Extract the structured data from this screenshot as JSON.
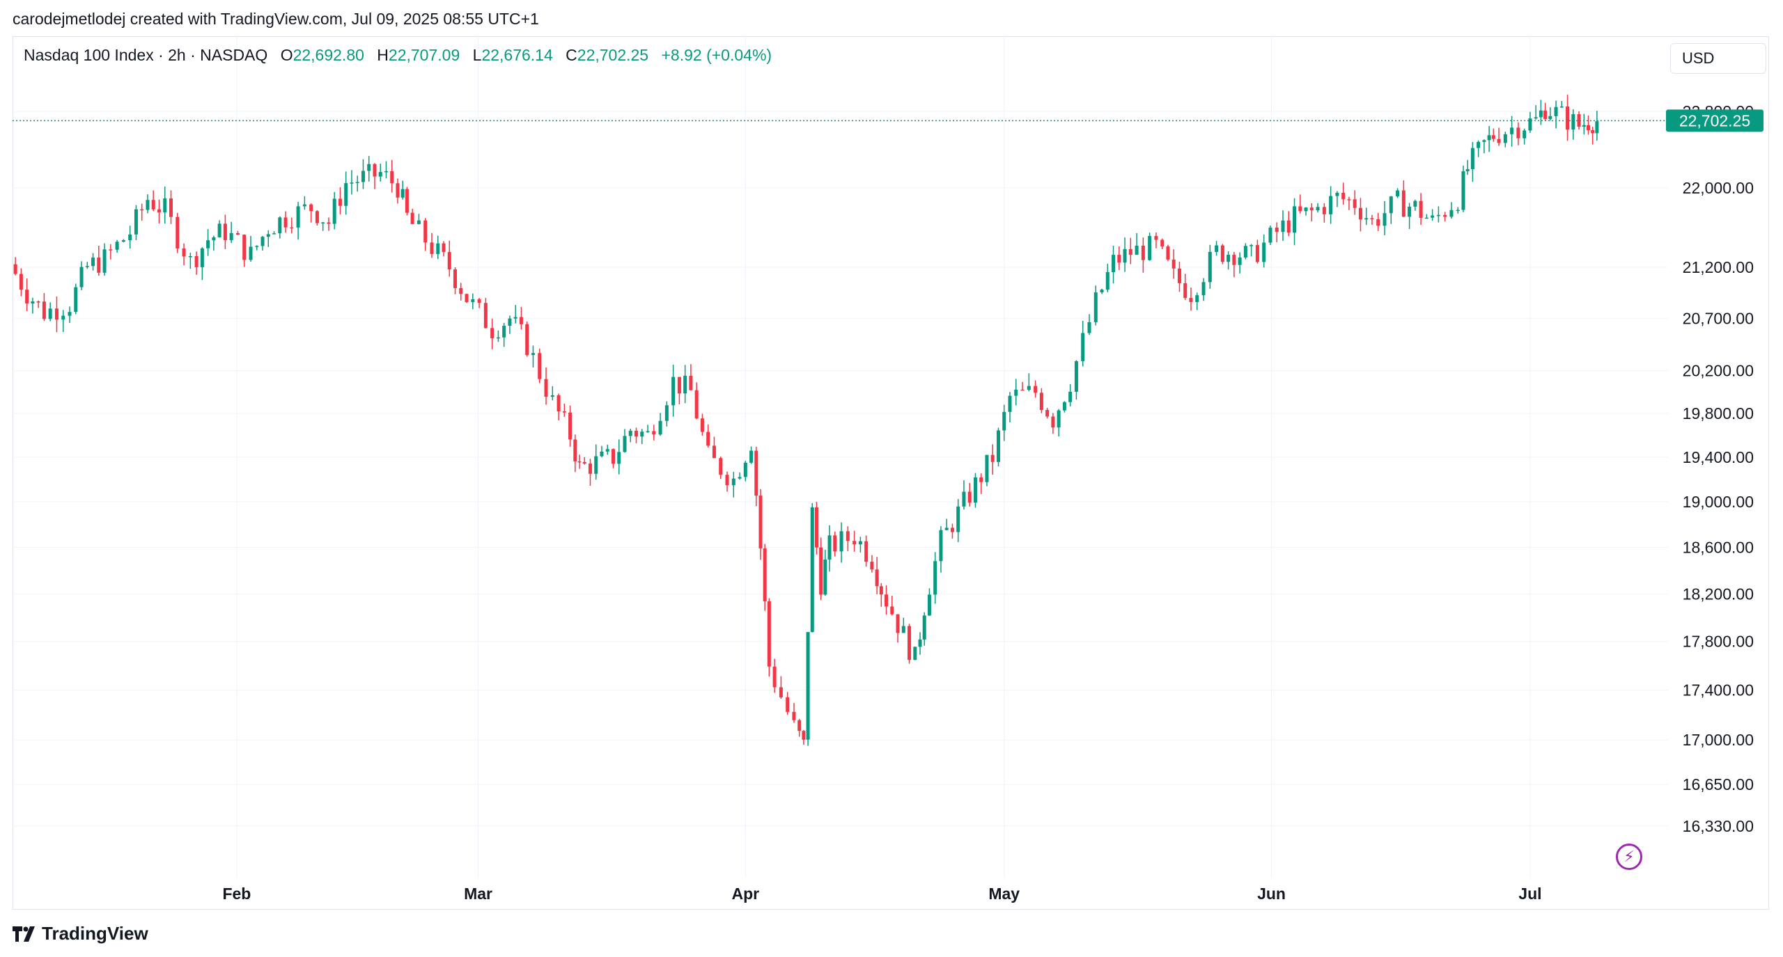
{
  "attribution": "carodejmetlodej created with TradingView.com, Jul 09, 2025 08:55 UTC+1",
  "legend": {
    "symbol": "Nasdaq 100 Index · 2h · NASDAQ",
    "o_label": "O",
    "o_value": "22,692.80",
    "h_label": "H",
    "h_value": "22,707.09",
    "l_label": "L",
    "l_value": "22,676.14",
    "c_label": "C",
    "c_value": "22,702.25",
    "change": "+8.92 (+0.04%)"
  },
  "currency": "USD",
  "brand": "TradingView",
  "colors": {
    "up": "#089981",
    "down": "#f23645",
    "grid": "#f0f3fa",
    "text": "#131722"
  },
  "chart_data": {
    "type": "candlestick",
    "y_axis": {
      "scale": "log",
      "ylim": [
        16050,
        22950
      ],
      "tick_values": [
        16330,
        16650,
        17000,
        17400,
        17800,
        18200,
        18600,
        19000,
        19400,
        19800,
        20200,
        20700,
        21200,
        22000,
        22800
      ],
      "tick_labels": [
        "16,330.00",
        "16,650.00",
        "17,000.00",
        "17,400.00",
        "17,800.00",
        "18,200.00",
        "18,600.00",
        "19,000.00",
        "19,400.00",
        "19,800.00",
        "20,200.00",
        "20,700.00",
        "21,200.00",
        "22,000.00",
        "22,800.00"
      ]
    },
    "x_axis": {
      "range": [
        "2025-01-06",
        "2025-07-17"
      ],
      "ticks": [
        {
          "date": "2025-02-01",
          "label": "Feb"
        },
        {
          "date": "2025-03-01",
          "label": "Mar"
        },
        {
          "date": "2025-04-01",
          "label": "Apr"
        },
        {
          "date": "2025-05-01",
          "label": "May"
        },
        {
          "date": "2025-06-01",
          "label": "Jun"
        },
        {
          "date": "2025-07-01",
          "label": "Jul"
        }
      ]
    },
    "last_price": {
      "value": 22702.25,
      "label": "22,702.25"
    },
    "series": [
      {
        "date": "2025-01-06",
        "close": 21230
      },
      {
        "date": "2025-01-08",
        "close": 20950
      },
      {
        "date": "2025-01-10",
        "close": 20760
      },
      {
        "date": "2025-01-13",
        "close": 20840
      },
      {
        "date": "2025-01-15",
        "close": 21200
      },
      {
        "date": "2025-01-17",
        "close": 21280
      },
      {
        "date": "2025-01-20",
        "close": 21550
      },
      {
        "date": "2025-01-22",
        "close": 21890
      },
      {
        "date": "2025-01-24",
        "close": 21770
      },
      {
        "date": "2025-01-27",
        "close": 21250
      },
      {
        "date": "2025-01-29",
        "close": 21480
      },
      {
        "date": "2025-01-31",
        "close": 21560
      },
      {
        "date": "2025-02-03",
        "close": 21320
      },
      {
        "date": "2025-02-05",
        "close": 21600
      },
      {
        "date": "2025-02-07",
        "close": 21700
      },
      {
        "date": "2025-02-10",
        "close": 21800
      },
      {
        "date": "2025-02-12",
        "close": 21650
      },
      {
        "date": "2025-02-14",
        "close": 22050
      },
      {
        "date": "2025-02-18",
        "close": 22150
      },
      {
        "date": "2025-02-20",
        "close": 22020
      },
      {
        "date": "2025-02-21",
        "close": 21700
      },
      {
        "date": "2025-02-24",
        "close": 21400
      },
      {
        "date": "2025-02-26",
        "close": 21200
      },
      {
        "date": "2025-02-28",
        "close": 20900
      },
      {
        "date": "2025-03-03",
        "close": 20600
      },
      {
        "date": "2025-03-05",
        "close": 20700
      },
      {
        "date": "2025-03-07",
        "close": 20450
      },
      {
        "date": "2025-03-10",
        "close": 19900
      },
      {
        "date": "2025-03-12",
        "close": 19600
      },
      {
        "date": "2025-03-13",
        "close": 19300
      },
      {
        "date": "2025-03-17",
        "close": 19400
      },
      {
        "date": "2025-03-19",
        "close": 19650
      },
      {
        "date": "2025-03-21",
        "close": 19600
      },
      {
        "date": "2025-03-24",
        "close": 20100
      },
      {
        "date": "2025-03-26",
        "close": 20000
      },
      {
        "date": "2025-03-28",
        "close": 19400
      },
      {
        "date": "2025-03-31",
        "close": 19200
      },
      {
        "date": "2025-04-02",
        "close": 19550
      },
      {
        "date": "2025-04-03",
        "close": 18600
      },
      {
        "date": "2025-04-04",
        "close": 17600
      },
      {
        "date": "2025-04-07",
        "close": 17100
      },
      {
        "date": "2025-04-08",
        "close": 16950
      },
      {
        "date": "2025-04-09",
        "close": 18900
      },
      {
        "date": "2025-04-10",
        "close": 18300
      },
      {
        "date": "2025-04-11",
        "close": 18600
      },
      {
        "date": "2025-04-14",
        "close": 18700
      },
      {
        "date": "2025-04-16",
        "close": 18500
      },
      {
        "date": "2025-04-17",
        "close": 18250
      },
      {
        "date": "2025-04-21",
        "close": 17650
      },
      {
        "date": "2025-04-22",
        "close": 18100
      },
      {
        "date": "2025-04-24",
        "close": 18650
      },
      {
        "date": "2025-04-28",
        "close": 19150
      },
      {
        "date": "2025-04-30",
        "close": 19400
      },
      {
        "date": "2025-05-02",
        "close": 19950
      },
      {
        "date": "2025-05-05",
        "close": 20000
      },
      {
        "date": "2025-05-07",
        "close": 19750
      },
      {
        "date": "2025-05-09",
        "close": 20100
      },
      {
        "date": "2025-05-12",
        "close": 20850
      },
      {
        "date": "2025-05-14",
        "close": 21250
      },
      {
        "date": "2025-05-16",
        "close": 21350
      },
      {
        "date": "2025-05-19",
        "close": 21400
      },
      {
        "date": "2025-05-21",
        "close": 21100
      },
      {
        "date": "2025-05-23",
        "close": 20950
      },
      {
        "date": "2025-05-26",
        "close": 21350
      },
      {
        "date": "2025-05-28",
        "close": 21350
      },
      {
        "date": "2025-05-30",
        "close": 21300
      },
      {
        "date": "2025-06-02",
        "close": 21550
      },
      {
        "date": "2025-06-04",
        "close": 21700
      },
      {
        "date": "2025-06-06",
        "close": 21750
      },
      {
        "date": "2025-06-09",
        "close": 21900
      },
      {
        "date": "2025-06-11",
        "close": 21850
      },
      {
        "date": "2025-06-13",
        "close": 21650
      },
      {
        "date": "2025-06-16",
        "close": 21850
      },
      {
        "date": "2025-06-18",
        "close": 21800
      },
      {
        "date": "2025-06-20",
        "close": 21650
      },
      {
        "date": "2025-06-23",
        "close": 21900
      },
      {
        "date": "2025-06-24",
        "close": 22200
      },
      {
        "date": "2025-06-26",
        "close": 22450
      },
      {
        "date": "2025-06-27",
        "close": 22550
      },
      {
        "date": "2025-06-30",
        "close": 22650
      },
      {
        "date": "2025-07-02",
        "close": 22700
      },
      {
        "date": "2025-07-03",
        "close": 22850
      },
      {
        "date": "2025-07-07",
        "close": 22650
      },
      {
        "date": "2025-07-08",
        "close": 22700
      },
      {
        "date": "2025-07-09",
        "close": 22702
      }
    ]
  }
}
